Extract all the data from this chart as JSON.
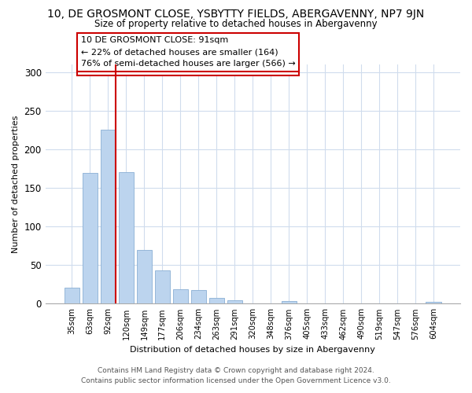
{
  "title": "10, DE GROSMONT CLOSE, YSBYTTY FIELDS, ABERGAVENNY, NP7 9JN",
  "subtitle": "Size of property relative to detached houses in Abergavenny",
  "xlabel": "Distribution of detached houses by size in Abergavenny",
  "ylabel": "Number of detached properties",
  "bar_labels": [
    "35sqm",
    "63sqm",
    "92sqm",
    "120sqm",
    "149sqm",
    "177sqm",
    "206sqm",
    "234sqm",
    "263sqm",
    "291sqm",
    "320sqm",
    "348sqm",
    "376sqm",
    "405sqm",
    "433sqm",
    "462sqm",
    "490sqm",
    "519sqm",
    "547sqm",
    "576sqm",
    "604sqm"
  ],
  "bar_values": [
    21,
    170,
    226,
    171,
    70,
    43,
    19,
    18,
    8,
    5,
    0,
    0,
    3,
    0,
    0,
    0,
    0,
    0,
    0,
    0,
    2
  ],
  "bar_color": "#bcd4ee",
  "bar_edge_color": "#8aafd4",
  "highlight_bar_index": 2,
  "highlight_color": "#cc0000",
  "annotation_box_text": "10 DE GROSMONT CLOSE: 91sqm\n← 22% of detached houses are smaller (164)\n76% of semi-detached houses are larger (566) →",
  "ylim": [
    0,
    310
  ],
  "yticks": [
    0,
    50,
    100,
    150,
    200,
    250,
    300
  ],
  "background_color": "#ffffff",
  "grid_color": "#d0dced",
  "footer_line1": "Contains HM Land Registry data © Crown copyright and database right 2024.",
  "footer_line2": "Contains public sector information licensed under the Open Government Licence v3.0."
}
